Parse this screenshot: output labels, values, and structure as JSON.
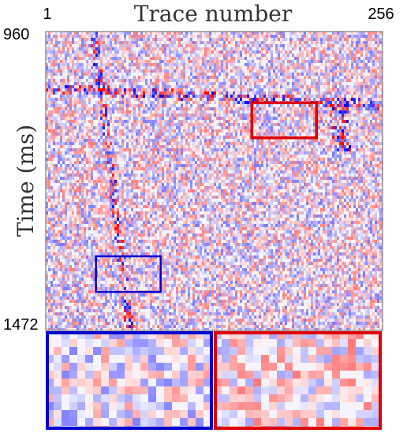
{
  "chart_data": {
    "type": "heatmap",
    "title": "",
    "xlabel": "Trace number",
    "ylabel": "Time (ms)",
    "x_tick_labels": [
      "1",
      "256"
    ],
    "y_tick_labels": [
      "960",
      "1472"
    ],
    "xlim": [
      1,
      256
    ],
    "ylim": [
      960,
      1472
    ],
    "colormap": [
      "#0000ff",
      "#ffffff",
      "#ff0000"
    ],
    "zoom_boxes": [
      {
        "name": "red",
        "color": "#dd0000",
        "traces": [
          157,
          206
        ],
        "time_ms": [
          1082,
          1142
        ]
      },
      {
        "name": "blue",
        "color": "#0000cc",
        "traces": [
          39,
          88
        ],
        "time_ms": [
          1345,
          1406
        ]
      }
    ],
    "insets": [
      {
        "box": "blue",
        "color": "#0000cc",
        "position": "bottom-left"
      },
      {
        "box": "red",
        "color": "#dd0000",
        "position": "bottom-right"
      }
    ]
  }
}
